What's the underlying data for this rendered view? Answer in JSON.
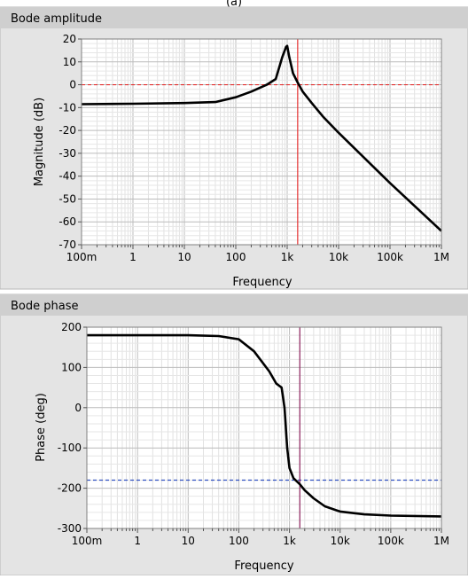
{
  "header_label": "(a)",
  "panels": [
    {
      "title": "Bode amplitude",
      "chart_data": {
        "type": "line",
        "xscale": "log",
        "xlabel": "Frequency",
        "ylabel": "Magnitude (dB)",
        "xlim": [
          0.1,
          1000000
        ],
        "ylim": [
          -70,
          20
        ],
        "xticks": [
          0.1,
          1,
          10,
          100,
          1000,
          10000,
          100000,
          1000000
        ],
        "xtick_labels": [
          "100m",
          "1",
          "10",
          "100",
          "1k",
          "10k",
          "100k",
          "1M"
        ],
        "yticks": [
          20,
          10,
          0,
          -10,
          -20,
          -30,
          -40,
          -50,
          -60,
          -70
        ],
        "ytick_labels": [
          "20",
          "10",
          "0",
          "-10",
          "-20",
          "-30",
          "-40",
          "-50",
          "-60",
          "-70"
        ],
        "grid": true,
        "series": [
          {
            "x": [
              0.1,
              1,
              10,
              40,
              100,
              200,
              400,
              600,
              800,
              950,
              1000,
              1100,
              1300,
              1600,
              2000,
              3000,
              5000,
              10000,
              100000,
              1000000
            ],
            "y": [
              -8.5,
              -8.3,
              -8.0,
              -7.6,
              -5.5,
              -3,
              0,
              2.5,
              12,
              16.5,
              17,
              12,
              5,
              1,
              -3,
              -8,
              -14,
              -21,
              -43,
              -64
            ],
            "color": "#000000"
          }
        ],
        "reference_lines": [
          {
            "orientation": "horizontal",
            "value": 0,
            "color": "#e53030",
            "style": "dashed"
          },
          {
            "orientation": "vertical",
            "value": 1600,
            "color": "#e53030",
            "style": "solid"
          }
        ]
      }
    },
    {
      "title": "Bode phase",
      "chart_data": {
        "type": "line",
        "xscale": "log",
        "xlabel": "Frequency",
        "ylabel": "Phase (deg)",
        "xlim": [
          0.1,
          1000000
        ],
        "ylim": [
          -300,
          200
        ],
        "xticks": [
          0.1,
          1,
          10,
          100,
          1000,
          10000,
          100000,
          1000000
        ],
        "xtick_labels": [
          "100m",
          "1",
          "10",
          "100",
          "1k",
          "10k",
          "100k",
          "1M"
        ],
        "yticks": [
          200,
          100,
          0,
          -100,
          -200,
          -300
        ],
        "ytick_labels": [
          "200",
          "100",
          "0",
          "-100",
          "-200",
          "-300"
        ],
        "grid": true,
        "series": [
          {
            "x": [
              0.1,
              1,
              10,
              40,
              100,
              200,
              400,
              550,
              700,
              800,
              900,
              1000,
              1200,
              1600,
              2000,
              3000,
              5000,
              10000,
              30000,
              100000,
              1000000
            ],
            "y": [
              180,
              180,
              180,
              178,
              170,
              140,
              90,
              60,
              50,
              0,
              -100,
              -150,
              -175,
              -190,
              -205,
              -225,
              -245,
              -258,
              -265,
              -268,
              -270
            ],
            "color": "#000000"
          }
        ],
        "reference_lines": [
          {
            "orientation": "horizontal",
            "value": -180,
            "color": "#3050c0",
            "style": "dashed"
          },
          {
            "orientation": "vertical",
            "value": 1600,
            "color": "#8a1f5a",
            "style": "solid"
          }
        ]
      }
    }
  ]
}
